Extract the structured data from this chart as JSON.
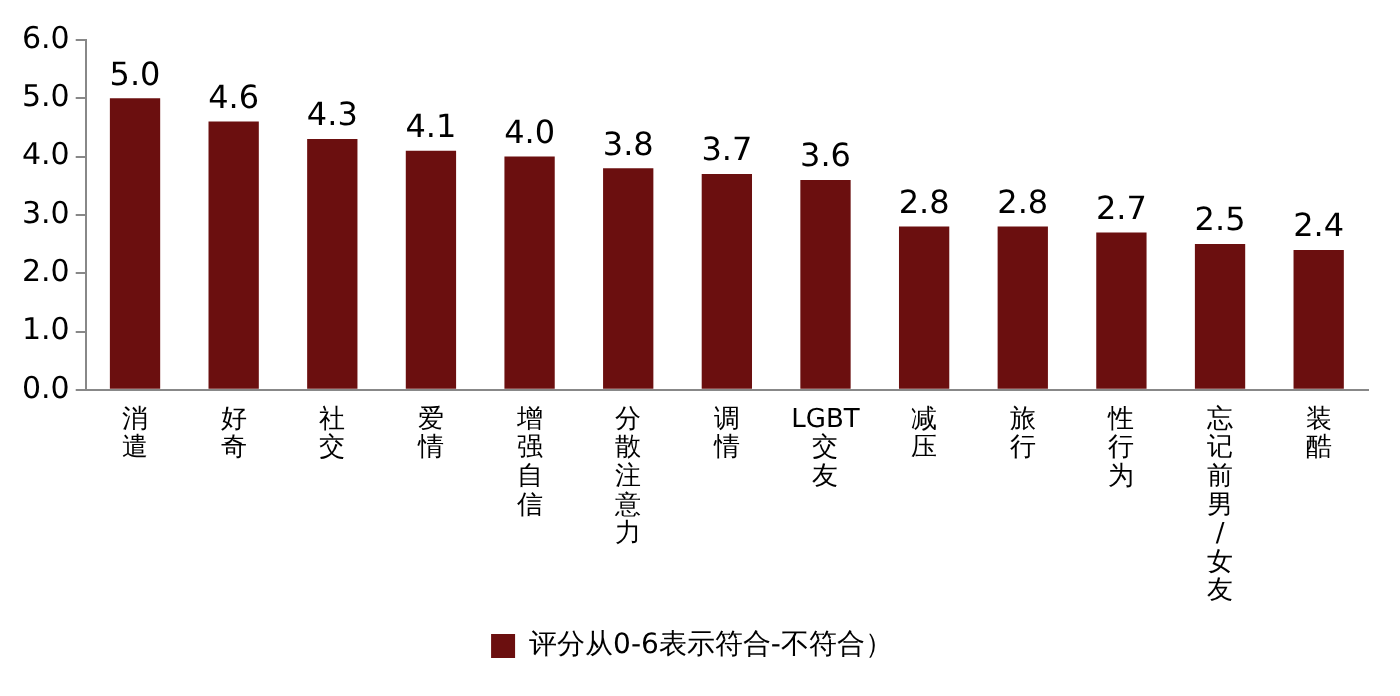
{
  "chart_data": {
    "type": "bar",
    "categories": [
      "消遣",
      "好奇",
      "社交",
      "爱情",
      "增强自信",
      "分散注意力",
      "调情",
      "LGBT交友",
      "减压",
      "旅行",
      "性行为",
      "忘记前男/女友",
      "装酷"
    ],
    "series": [
      {
        "name": "评分从0-6表示符合-不符合）",
        "color": "#6b0f0f",
        "values": [
          5.0,
          4.6,
          4.3,
          4.1,
          4.0,
          3.8,
          3.7,
          3.6,
          2.8,
          2.8,
          2.7,
          2.5,
          2.4
        ],
        "value_labels": [
          "5.0",
          "4.6",
          "4.3",
          "4.1",
          "4.0",
          "3.8",
          "3.7",
          "3.6",
          "2.8",
          "2.8",
          "2.7",
          "2.5",
          "2.4"
        ]
      }
    ],
    "ylim": [
      0,
      6
    ],
    "yticks": [
      {
        "value": 0,
        "label": "0.0"
      },
      {
        "value": 1,
        "label": "1.0"
      },
      {
        "value": 2,
        "label": "2.0"
      },
      {
        "value": 3,
        "label": "3.0"
      },
      {
        "value": 4,
        "label": "4.0"
      },
      {
        "value": 5,
        "label": "5.0"
      },
      {
        "value": 6,
        "label": "6.0"
      }
    ],
    "grid": false,
    "legend": "bottom"
  }
}
